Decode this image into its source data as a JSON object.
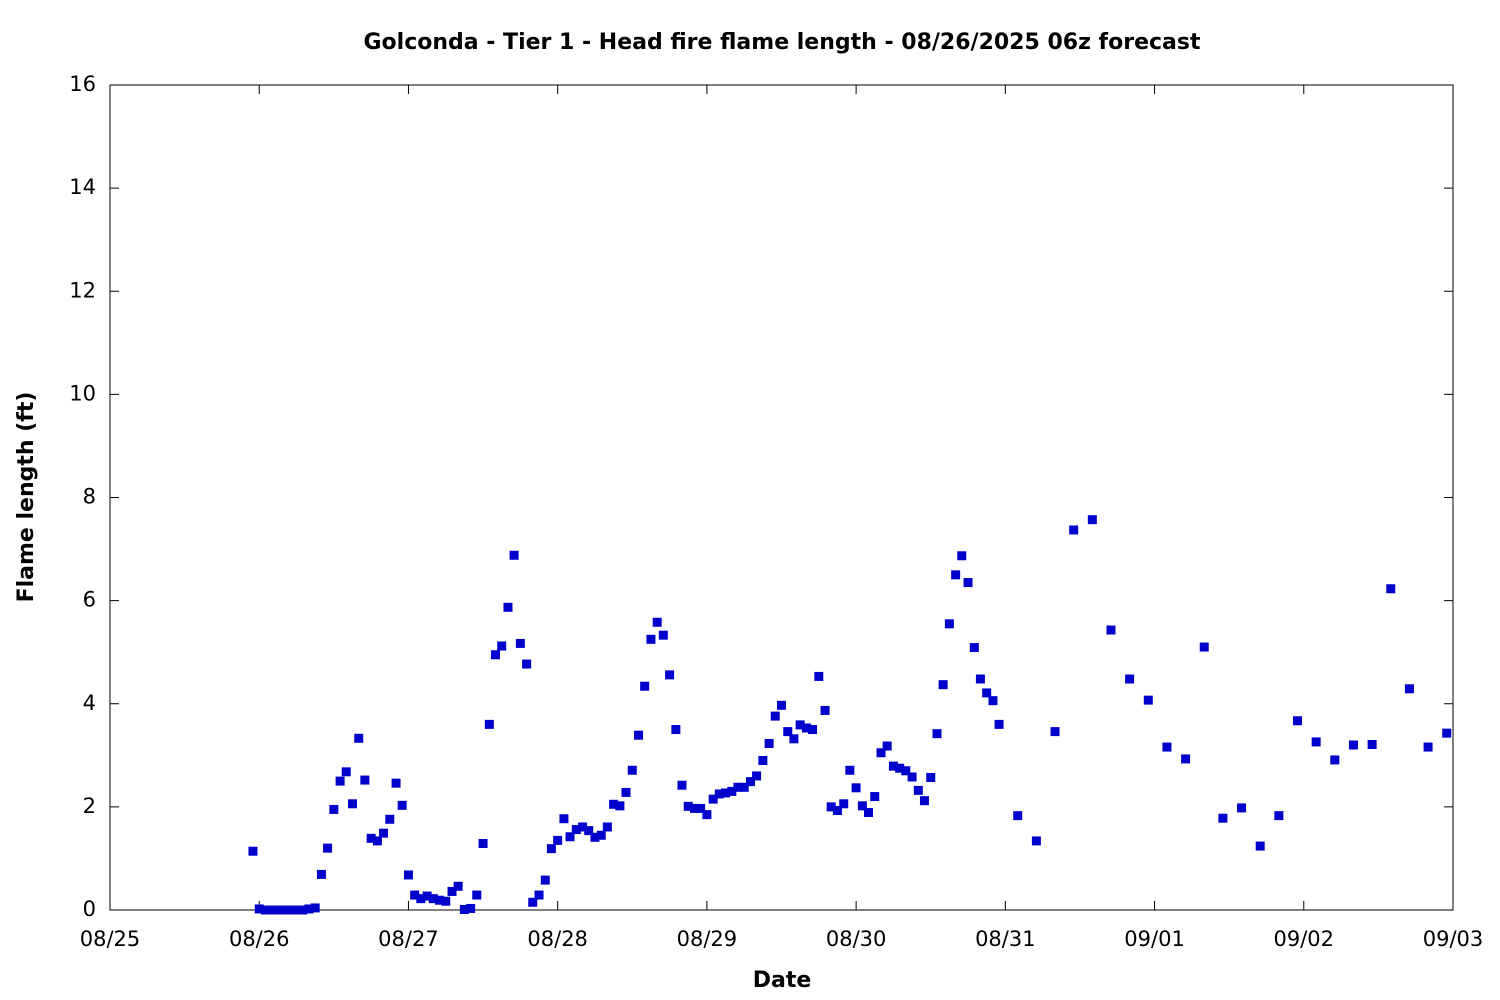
{
  "chart_data": {
    "type": "scatter",
    "title": "Golconda - Tier 1 - Head fire flame length - 08/26/2025 06z forecast",
    "x_label": "Date",
    "y_label": "Flame length (ft)",
    "xlim": [
      0,
      9
    ],
    "xticks": [
      {
        "value": 0,
        "label": "08/25"
      },
      {
        "value": 1,
        "label": "08/26"
      },
      {
        "value": 2,
        "label": "08/27"
      },
      {
        "value": 3,
        "label": "08/28"
      },
      {
        "value": 4,
        "label": "08/29"
      },
      {
        "value": 5,
        "label": "08/30"
      },
      {
        "value": 6,
        "label": "08/31"
      },
      {
        "value": 7,
        "label": "09/01"
      },
      {
        "value": 8,
        "label": "09/02"
      },
      {
        "value": 9,
        "label": "09/03"
      }
    ],
    "ylim": [
      0,
      16
    ],
    "yticks": [
      0,
      2,
      4,
      6,
      8,
      10,
      12,
      14,
      16
    ],
    "color": "#0000cc",
    "x": [
      0.958,
      1,
      1.042,
      1.083,
      1.125,
      1.167,
      1.208,
      1.25,
      1.292,
      1.333,
      1.375,
      1.417,
      1.458,
      1.5,
      1.542,
      1.583,
      1.625,
      1.667,
      1.708,
      1.75,
      1.792,
      1.833,
      1.875,
      1.917,
      1.958,
      2,
      2.042,
      2.083,
      2.125,
      2.167,
      2.208,
      2.25,
      2.292,
      2.333,
      2.375,
      2.417,
      2.458,
      2.5,
      2.542,
      2.583,
      2.625,
      2.667,
      2.708,
      2.75,
      2.792,
      2.833,
      2.875,
      2.917,
      2.958,
      3,
      3.042,
      3.083,
      3.125,
      3.167,
      3.208,
      3.25,
      3.292,
      3.333,
      3.375,
      3.417,
      3.458,
      3.5,
      3.542,
      3.583,
      3.625,
      3.667,
      3.708,
      3.75,
      3.792,
      3.833,
      3.875,
      3.917,
      3.958,
      4,
      4.042,
      4.083,
      4.125,
      4.167,
      4.208,
      4.25,
      4.292,
      4.333,
      4.375,
      4.417,
      4.458,
      4.5,
      4.542,
      4.583,
      4.625,
      4.667,
      4.708,
      4.75,
      4.792,
      4.833,
      4.875,
      4.917,
      4.958,
      5,
      5.042,
      5.083,
      5.125,
      5.167,
      5.208,
      5.25,
      5.292,
      5.333,
      5.375,
      5.417,
      5.458,
      5.5,
      5.542,
      5.583,
      5.625,
      5.667,
      5.708,
      5.75,
      5.792,
      5.833,
      5.875,
      5.917,
      5.958,
      6.083,
      6.208,
      6.333,
      6.458,
      6.583,
      6.708,
      6.833,
      6.958,
      7.083,
      7.208,
      7.333,
      7.458,
      7.583,
      7.708,
      7.833,
      7.958,
      8.083,
      8.208,
      8.333,
      8.458,
      8.583,
      8.708,
      8.833,
      8.958
    ],
    "values": [
      1.14,
      0.02,
      0,
      0,
      0,
      0,
      0,
      0,
      0,
      0.02,
      0.04,
      0.69,
      1.2,
      1.95,
      2.5,
      2.68,
      2.06,
      3.33,
      2.52,
      1.39,
      1.34,
      1.49,
      1.76,
      2.46,
      2.03,
      0.68,
      0.29,
      0.22,
      0.27,
      0.22,
      0.19,
      0.17,
      0.36,
      0.46,
      0.01,
      0.03,
      0.29,
      1.29,
      3.6,
      4.95,
      5.12,
      5.87,
      6.88,
      5.17,
      4.77,
      0.15,
      0.29,
      0.58,
      1.19,
      1.35,
      1.77,
      1.42,
      1.56,
      1.61,
      1.54,
      1.41,
      1.45,
      1.61,
      2.05,
      2.02,
      2.28,
      2.71,
      3.39,
      4.34,
      5.25,
      5.58,
      5.33,
      4.56,
      3.5,
      2.42,
      2.01,
      1.97,
      1.97,
      1.85,
      2.15,
      2.25,
      2.27,
      2.3,
      2.38,
      2.38,
      2.49,
      2.6,
      2.9,
      3.23,
      3.76,
      3.97,
      3.46,
      3.32,
      3.59,
      3.53,
      3.5,
      4.53,
      3.87,
      2.0,
      1.93,
      2.06,
      2.71,
      2.37,
      2.02,
      1.89,
      2.2,
      3.05,
      3.18,
      2.79,
      2.75,
      2.7,
      2.58,
      2.32,
      2.12,
      2.57,
      3.42,
      4.37,
      5.55,
      6.5,
      6.87,
      6.35,
      5.09,
      4.48,
      4.21,
      4.06,
      3.6,
      1.83,
      1.34,
      3.46,
      7.37,
      7.57,
      5.43,
      4.48,
      4.07,
      3.16,
      2.93,
      5.1,
      1.78,
      1.98,
      1.24,
      1.83,
      3.67,
      3.26,
      2.91,
      3.2,
      3.21,
      6.23,
      4.29,
      3.16,
      3.43
    ]
  }
}
